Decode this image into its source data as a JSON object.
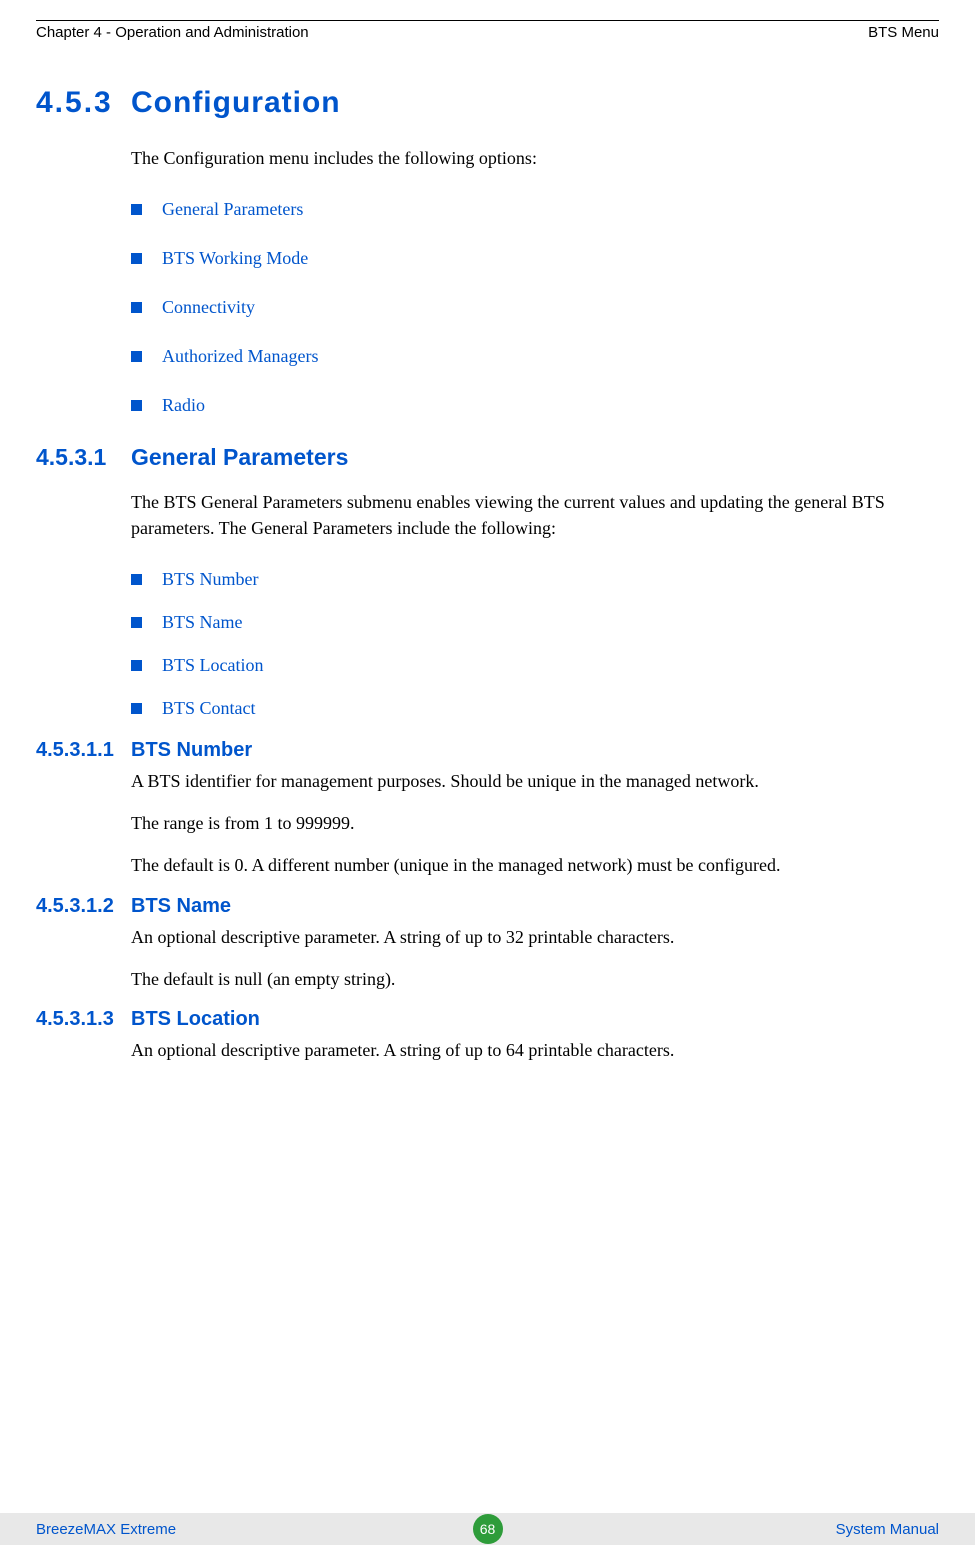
{
  "header": {
    "left": "Chapter 4 - Operation and Administration",
    "right": "BTS Menu"
  },
  "colors": {
    "heading": "#0055cc",
    "bullet_text": "#0055cc",
    "bullet_square": "#0055cc",
    "body_text": "#000000",
    "footer_bg": "#e8e8e8",
    "footer_text": "#0055cc",
    "badge_bg": "#2e9c3a",
    "badge_text": "#ffffff"
  },
  "section_main": {
    "number": "4.5.3",
    "title": "Configuration",
    "intro": "The Configuration menu includes the following options:",
    "bullets": [
      "General Parameters",
      "BTS Working Mode",
      "Connectivity",
      "Authorized Managers",
      "Radio"
    ]
  },
  "section_4531": {
    "number": "4.5.3.1",
    "title": "General Parameters",
    "intro": "The BTS General Parameters submenu enables viewing the current values and updating the general BTS parameters. The General Parameters include the following:",
    "bullets": [
      "BTS Number",
      "BTS Name",
      "BTS Location",
      "BTS Contact"
    ]
  },
  "section_45311": {
    "number": "4.5.3.1.1",
    "title": "BTS Number",
    "p1": "A BTS identifier for management purposes. Should be unique in the managed network.",
    "p2": "The range is from 1 to 999999.",
    "p3": "The default is 0. A different number (unique in the managed network) must be configured."
  },
  "section_45312": {
    "number": "4.5.3.1.2",
    "title": "BTS Name",
    "p1": "An optional descriptive parameter. A string of up to 32 printable characters.",
    "p2": "The default is null (an empty string)."
  },
  "section_45313": {
    "number": "4.5.3.1.3",
    "title": "BTS Location",
    "p1": "An optional descriptive parameter. A string of up to 64 printable characters."
  },
  "footer": {
    "left": "BreezeMAX Extreme",
    "page": "68",
    "right": "System Manual"
  }
}
